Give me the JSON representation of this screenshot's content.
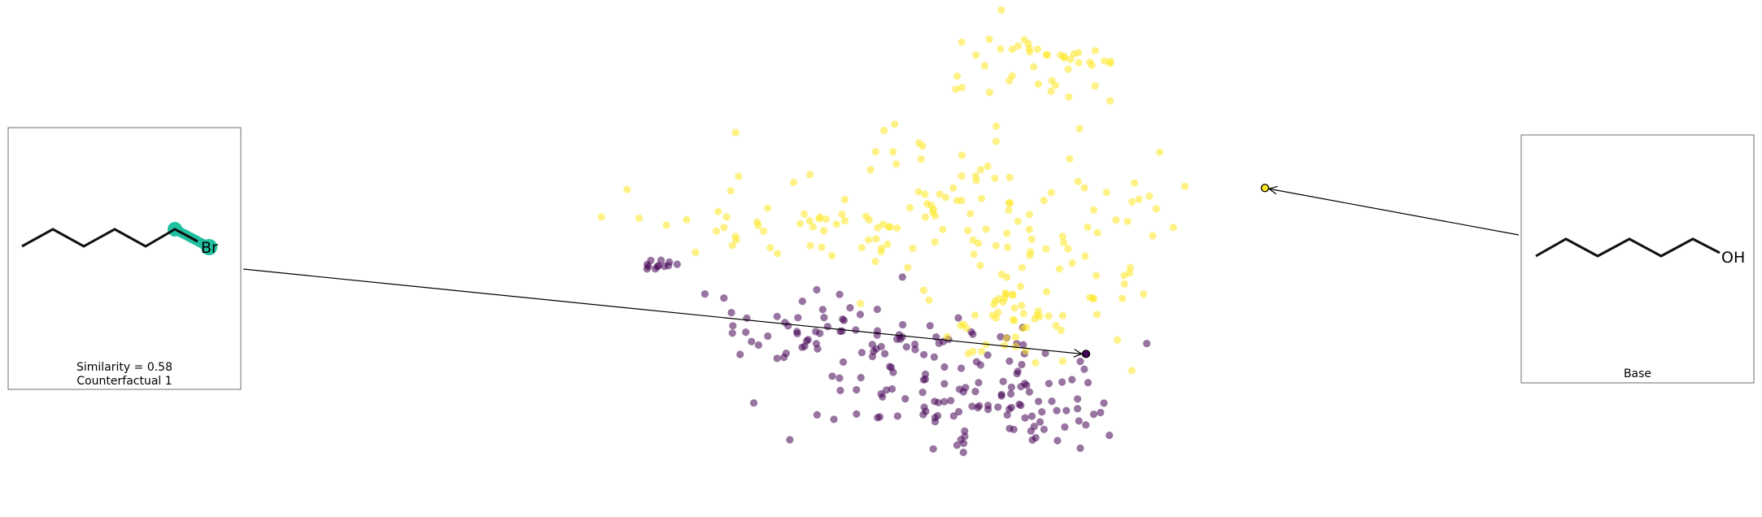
{
  "chart_data": {
    "type": "scatter",
    "title": "",
    "xlabel": "",
    "ylabel": "",
    "grid": false,
    "axes_visible": false,
    "colors": {
      "class_0": "#440154",
      "class_1": "#fde725",
      "link": "#000000",
      "highlight": "#1fbf9f"
    },
    "xlim": [
      0,
      100
    ],
    "ylim": [
      0,
      100
    ],
    "clusters": [
      {
        "cls": 0,
        "cx": 26.5,
        "cy": 48.5,
        "sx": 1.2,
        "sy": 0.8,
        "n": 12
      },
      {
        "cls": 0,
        "cx": 44,
        "cy": 35,
        "sx": 8,
        "sy": 4.5,
        "n": 45
      },
      {
        "cls": 0,
        "cx": 60,
        "cy": 24,
        "sx": 9,
        "sy": 6,
        "n": 110
      },
      {
        "cls": 0,
        "cx": 74,
        "cy": 18,
        "sx": 4,
        "sy": 5,
        "n": 35
      },
      {
        "cls": 1,
        "cx": 74,
        "cy": 92,
        "sx": 5,
        "sy": 4,
        "n": 40
      },
      {
        "cls": 1,
        "cx": 42,
        "cy": 57,
        "sx": 9,
        "sy": 4,
        "n": 45
      },
      {
        "cls": 1,
        "cx": 62,
        "cy": 60,
        "sx": 10,
        "sy": 10,
        "n": 75
      },
      {
        "cls": 1,
        "cx": 70,
        "cy": 38,
        "sx": 6,
        "sy": 5,
        "n": 50
      },
      {
        "cls": 1,
        "cx": 80,
        "cy": 55,
        "sx": 7,
        "sy": 12,
        "n": 35
      }
    ],
    "base_point": {
      "x": 101,
      "y": 65,
      "cls": 1
    },
    "counterfactual_point": {
      "x": 79,
      "y": 29.5,
      "cls": 0
    },
    "annotations": [
      {
        "id": "counterfactual-1",
        "target": "counterfactual_point",
        "lines": [
          "Similarity = 0.58",
          "Counterfactual 1"
        ],
        "molecule": {
          "atoms": [
            "C",
            "C",
            "C",
            "C",
            "C",
            "C",
            "Br"
          ],
          "highlight_bond": [
            5,
            6
          ]
        }
      },
      {
        "id": "base",
        "target": "base_point",
        "lines": [
          "Base"
        ],
        "molecule": {
          "atoms": [
            "C",
            "C",
            "C",
            "C",
            "C",
            "C",
            "OH"
          ],
          "highlight_bond": null
        }
      }
    ]
  },
  "labels": {
    "cf_similarity": "Similarity = 0.58",
    "cf_title": "Counterfactual 1",
    "cf_hetero": "Br",
    "base_title": "Base",
    "base_hetero": "OH"
  }
}
